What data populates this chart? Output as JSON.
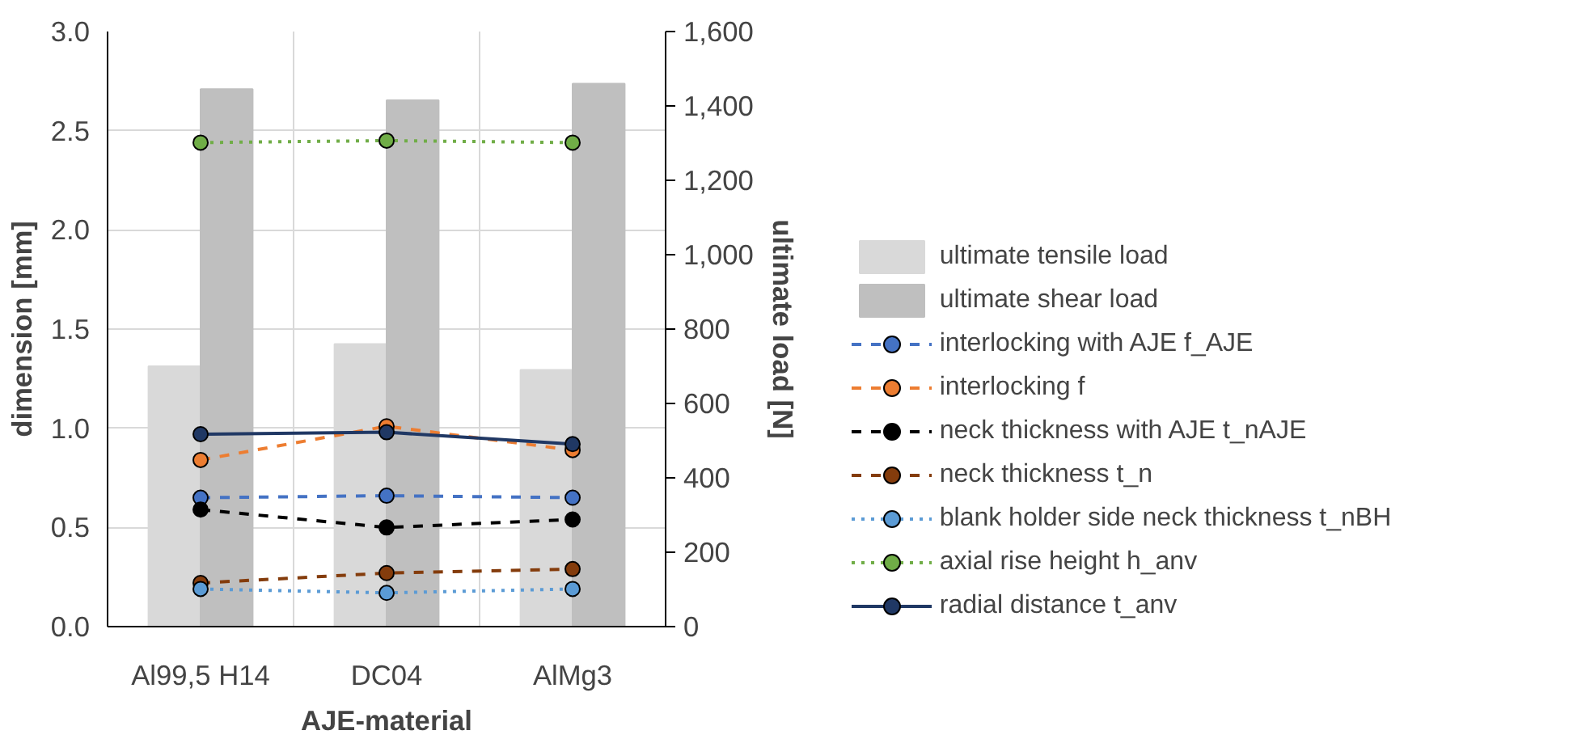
{
  "chart_data": {
    "type": "line",
    "xlabel": "AJE-material",
    "ylabel": "dimension [mm]",
    "y2label": "ultimate load [N]",
    "categories": [
      "Al99,5 H14",
      "DC04",
      "AlMg3"
    ],
    "ylim": [
      0,
      3
    ],
    "yticks": [
      {
        "value": 0,
        "label": "0.0"
      },
      {
        "value": 0.5,
        "label": "0.5"
      },
      {
        "value": 1,
        "label": "1.0"
      },
      {
        "value": 1.5,
        "label": "1.5"
      },
      {
        "value": 2,
        "label": "2.0"
      },
      {
        "value": 2.5,
        "label": "2.5"
      },
      {
        "value": 3,
        "label": "3.0"
      }
    ],
    "y2lim": [
      0,
      1600
    ],
    "y2ticks": [
      0,
      200,
      400,
      600,
      800,
      {
        "value": 1000,
        "label": "1,000"
      },
      {
        "value": 1200,
        "label": "1,200"
      },
      {
        "value": 1400,
        "label": "1,400"
      },
      {
        "value": 1600,
        "label": "1,600"
      }
    ],
    "grid": true,
    "legend": "right",
    "marker": "circle",
    "series": [
      {
        "name": "ultimate tensile load",
        "type": "bar",
        "axis": "y2",
        "color": "#d9d9d9",
        "values": [
          700,
          760,
          690
        ]
      },
      {
        "name": "ultimate shear load",
        "type": "bar",
        "axis": "y2",
        "color": "#bfbfbf",
        "values": [
          1445,
          1415,
          1460
        ]
      },
      {
        "name": "interlocking with AJE f_AJE",
        "color": "#4472c4",
        "line_style": "dashed",
        "values": [
          0.65,
          0.66,
          0.65
        ]
      },
      {
        "name": "interlocking f",
        "color": "#ed7d31",
        "line_style": "dashed",
        "values": [
          0.84,
          1.01,
          0.89
        ]
      },
      {
        "name": "neck thickness with AJE t_nAJE",
        "color": "#000000",
        "line_style": "dashed",
        "values": [
          0.59,
          0.5,
          0.54
        ]
      },
      {
        "name": "neck thickness t_n",
        "color": "#843c0c",
        "line_style": "dashed",
        "values": [
          0.22,
          0.27,
          0.29
        ]
      },
      {
        "name": "blank holder side neck thickness t_nBH",
        "color": "#5b9bd5",
        "line_style": "dotted",
        "values": [
          0.19,
          0.17,
          0.19
        ]
      },
      {
        "name": "axial rise height h_anv",
        "color": "#70ad47",
        "line_style": "dotted",
        "values": [
          2.44,
          2.45,
          2.44
        ]
      },
      {
        "name": "radial distance t_anv",
        "color": "#203864",
        "line_style": "solid",
        "values": [
          0.97,
          0.98,
          0.92
        ]
      }
    ]
  }
}
